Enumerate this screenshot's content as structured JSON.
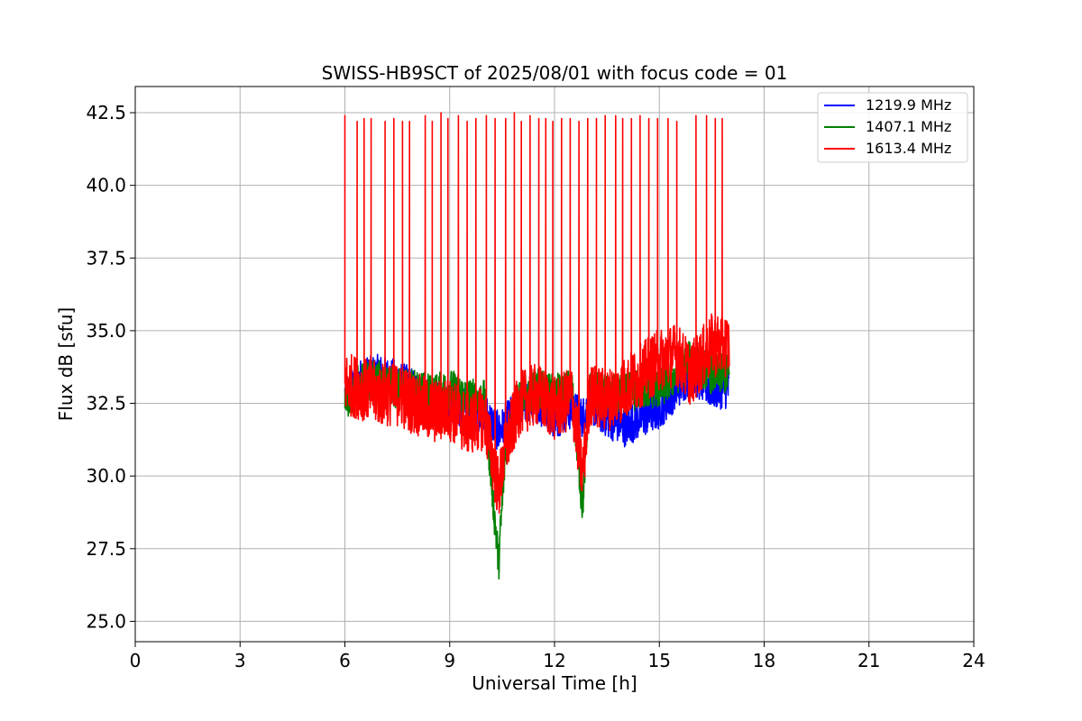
{
  "chart_data": {
    "type": "line",
    "title": "SWISS-HB9SCT of 2025/08/01 with focus code = 01",
    "xlabel": "Universal Time [h]",
    "ylabel": "Flux dB [sfu]",
    "xlim": [
      0,
      24
    ],
    "ylim": [
      24.3,
      43.4
    ],
    "xticks": [
      0,
      3,
      6,
      9,
      12,
      15,
      18,
      21,
      24
    ],
    "xtick_labels": [
      "0",
      "3",
      "6",
      "9",
      "12",
      "15",
      "18",
      "21",
      "24"
    ],
    "yticks": [
      25.0,
      27.5,
      30.0,
      32.5,
      35.0,
      37.5,
      40.0,
      42.5
    ],
    "ytick_labels": [
      "25.0",
      "27.5",
      "30.0",
      "32.5",
      "35.0",
      "37.5",
      "40.0",
      "42.5"
    ],
    "grid": true,
    "legend_position": "top-right",
    "series": [
      {
        "name": "1219.9 MHz",
        "color": "#0000ff",
        "x": [
          6.0,
          6.5,
          7.0,
          7.5,
          8.0,
          8.5,
          9.0,
          9.5,
          10.0,
          10.4,
          10.6,
          11.0,
          11.5,
          12.0,
          12.5,
          12.8,
          13.0,
          13.5,
          14.0,
          14.5,
          15.0,
          15.5,
          15.9,
          16.5,
          17.0
        ],
        "y": [
          32.8,
          33.4,
          33.5,
          33.3,
          33.0,
          32.5,
          32.5,
          32.3,
          32.2,
          31.5,
          31.8,
          32.5,
          32.5,
          32.0,
          32.3,
          32.0,
          32.5,
          32.0,
          31.7,
          32.0,
          32.3,
          33.0,
          33.5,
          33.0,
          33.0
        ]
      },
      {
        "name": "1407.1 MHz",
        "color": "#008000",
        "x": [
          6.0,
          6.5,
          7.0,
          7.5,
          8.0,
          8.5,
          9.0,
          9.5,
          10.0,
          10.4,
          10.6,
          11.0,
          11.5,
          12.0,
          12.5,
          12.8,
          13.0,
          13.5,
          14.0,
          14.5,
          15.0,
          15.5,
          15.9,
          16.5,
          17.0
        ],
        "y": [
          32.6,
          33.3,
          33.3,
          33.0,
          33.0,
          32.8,
          33.0,
          32.7,
          32.6,
          27.0,
          31.0,
          32.7,
          33.0,
          32.8,
          33.0,
          29.0,
          33.0,
          32.8,
          32.8,
          33.0,
          33.0,
          33.5,
          34.0,
          33.5,
          33.5
        ]
      },
      {
        "name": "1613.4 MHz",
        "color": "#ff0000",
        "x": [
          6.0,
          6.5,
          7.0,
          7.5,
          8.0,
          8.5,
          9.0,
          9.5,
          10.0,
          10.4,
          10.6,
          11.0,
          11.5,
          12.0,
          12.5,
          12.8,
          13.0,
          13.5,
          14.0,
          14.5,
          15.0,
          15.5,
          15.9,
          16.5,
          17.0
        ],
        "y": [
          33.2,
          33.0,
          32.8,
          32.8,
          32.5,
          32.2,
          32.3,
          31.8,
          32.0,
          29.5,
          31.0,
          32.5,
          32.8,
          32.3,
          32.7,
          30.0,
          32.8,
          32.6,
          33.0,
          33.5,
          34.0,
          34.2,
          33.5,
          34.5,
          34.5
        ]
      }
    ],
    "spikes": {
      "series": "1613.4 MHz",
      "x": [
        6.0,
        6.35,
        6.55,
        6.75,
        7.15,
        7.4,
        7.65,
        7.85,
        8.3,
        8.5,
        8.75,
        8.95,
        9.25,
        9.5,
        9.75,
        10.05,
        10.3,
        10.6,
        10.85,
        11.05,
        11.3,
        11.55,
        11.75,
        11.95,
        12.2,
        12.45,
        12.7,
        12.95,
        13.2,
        13.45,
        13.75,
        13.95,
        14.2,
        14.45,
        14.7,
        14.95,
        15.25,
        15.5,
        16.05,
        16.35,
        16.6,
        16.8
      ],
      "y": [
        42.4,
        42.2,
        42.3,
        42.3,
        42.2,
        42.3,
        42.2,
        42.2,
        42.4,
        42.2,
        42.5,
        42.3,
        42.4,
        42.2,
        42.3,
        42.4,
        42.3,
        42.3,
        42.5,
        42.2,
        42.4,
        42.3,
        42.3,
        42.2,
        42.3,
        42.3,
        42.2,
        42.3,
        42.3,
        42.4,
        42.4,
        42.3,
        42.3,
        42.4,
        42.3,
        42.3,
        42.3,
        42.2,
        42.4,
        42.4,
        42.3,
        42.3
      ]
    }
  }
}
